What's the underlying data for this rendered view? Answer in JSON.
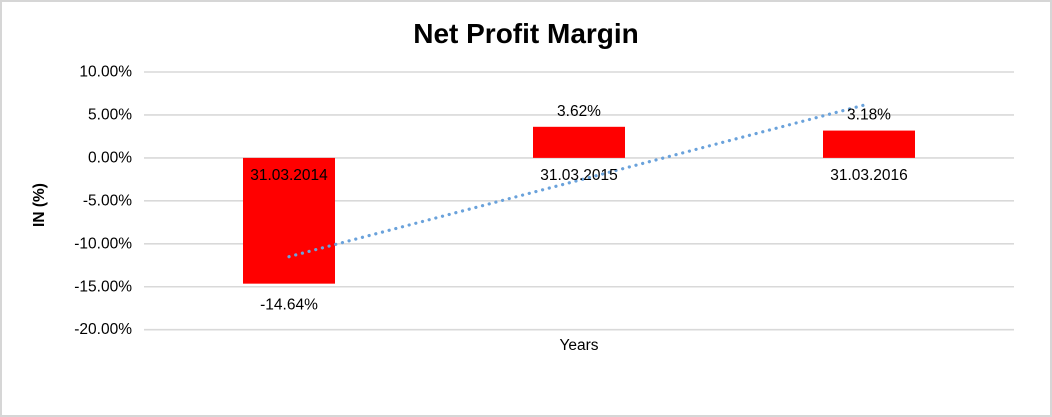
{
  "chart_data": {
    "type": "bar",
    "title": "Net Profit Margin",
    "xlabel": "Years",
    "ylabel": "IN (%)",
    "categories": [
      "31.03.2014",
      "31.03.2015",
      "31.03.2016"
    ],
    "values": [
      -14.64,
      3.62,
      3.18
    ],
    "data_labels": [
      "-14.64%",
      "3.62%",
      "3.18%"
    ],
    "series_name": "Net Profit Margin",
    "ylim": [
      -20,
      10
    ],
    "y_ticks": [
      {
        "value": 10,
        "label": "10.00%"
      },
      {
        "value": 5,
        "label": "5.00%"
      },
      {
        "value": 0,
        "label": "0.00%"
      },
      {
        "value": -5,
        "label": "-5.00%"
      },
      {
        "value": -10,
        "label": "-10.00%"
      },
      {
        "value": -15,
        "label": "-15.00%"
      },
      {
        "value": -20,
        "label": "-20.00%"
      }
    ],
    "grid": "horizontal",
    "legend": "none",
    "trendline": {
      "type": "linear",
      "style": "dotted",
      "start_value": -11.5,
      "end_value": 6.3
    },
    "colors": {
      "bar": "#FF0000",
      "trendline": "#6AA2DB",
      "gridline": "#D9D9D9",
      "border": "#D6D6D6",
      "text": "#000000"
    }
  }
}
